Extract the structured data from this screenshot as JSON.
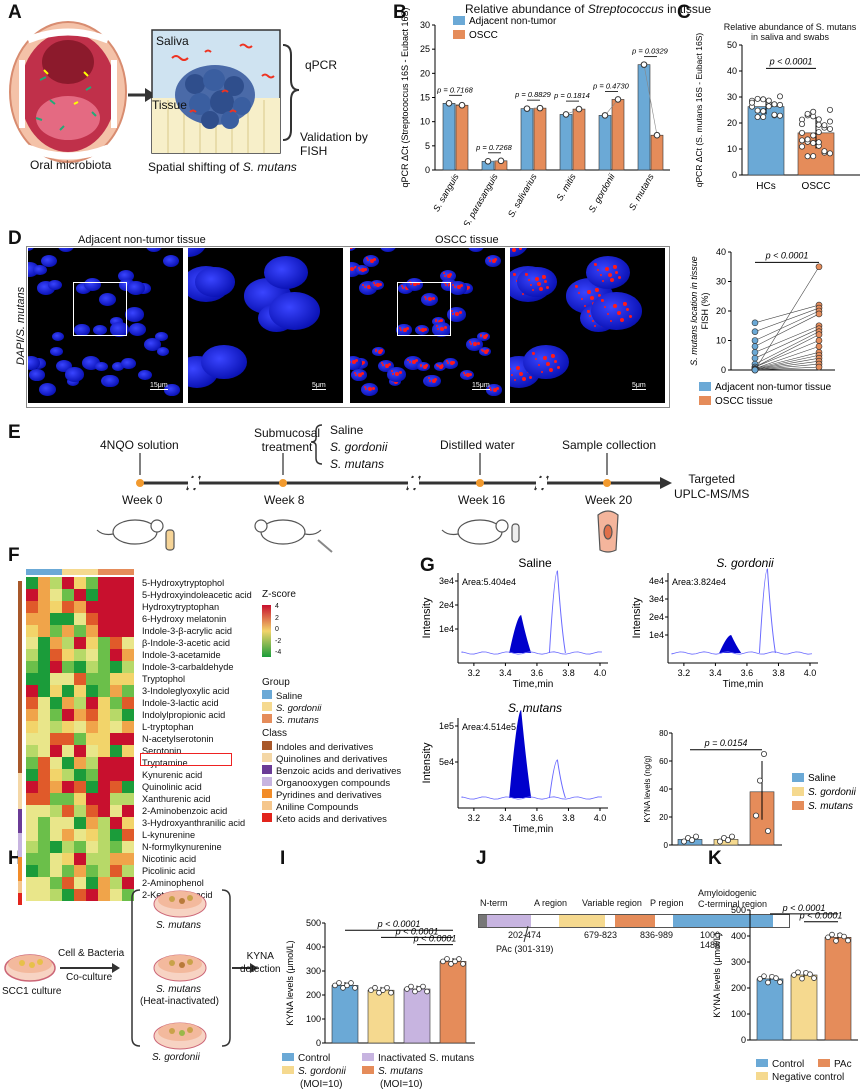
{
  "panels": {
    "a": "A",
    "b": "B",
    "c": "C",
    "d": "D",
    "e": "E",
    "f": "F",
    "g": "G",
    "h": "H",
    "i": "I",
    "j": "J",
    "k": "K"
  },
  "panelA": {
    "saliva": "Saliva",
    "tissue": "Tissue",
    "qpcr": "qPCR",
    "validation": "Validation by FISH",
    "oral": "Oral microbiota",
    "spatial_prefix": "Spatial shifting of ",
    "spatial_species": "S. mutans"
  },
  "panelB": {
    "title_prefix": "Relative abundance of ",
    "title_italic": "Streptococcus",
    "title_suffix": " in tissue",
    "ylabel": "qPCR ΔCt (Streptococcus 16S - Eubact 16S)",
    "legend": [
      "Adjacent non-tumor",
      "OSCC"
    ]
  },
  "panelC": {
    "title1": "Relative abundance of S. mutans",
    "title2": "in saliva and swabs",
    "ylabel": "qPCR ΔCt (S. mutans 16S - Eubact 16S)",
    "pval": "p < 0.0001"
  },
  "panelD": {
    "adj_title": "Adjacent non-tumor tissue",
    "oscc_title": "OSCC tissue",
    "ylabel": "DAPI/S. mutans",
    "scales": [
      "15μm",
      "5μm",
      "15μm",
      "5μm"
    ],
    "plot_ylabel1": "S. mutans location in tissue",
    "plot_ylabel2": "FISH (%)",
    "pval": "p < 0.0001",
    "legend": [
      "Adjacent non-tumor tissue",
      "OSCC tissue"
    ]
  },
  "panelE": {
    "steps": [
      {
        "label": "4NQO solution",
        "week": "Week 0"
      },
      {
        "label": "Submucosal",
        "label2": "treatment",
        "week": "Week 8"
      },
      {
        "label": "Distilled water",
        "week": "Week 16"
      },
      {
        "label": "Sample collection",
        "week": "Week 20"
      }
    ],
    "treatments": [
      "Saline",
      "S. gordonii",
      "S. mutans"
    ],
    "end1": "Targeted",
    "end2": "UPLC-MS/MS"
  },
  "panelF": {
    "metabolites": [
      "5-Hydroxytryptophol",
      "5-Hydroxyindoleacetic acid",
      "Hydroxytryptophan",
      "6-Hydroxy melatonin",
      "Indole-3-β-acrylic acid",
      "β-Indole-3-acetic acid",
      "Indole-3-acetamide",
      "Indole-3-carbaldehyde",
      "Tryptophol",
      "3-Indoleglyoxylic acid",
      "Indole-3-lactic acid",
      "Indolylpropionic acid",
      "L-tryptophan",
      "N-acetylserotonin",
      "Serotonin",
      "Tryptamine",
      "Kynurenic acid",
      "Quinolinic acid",
      "Xanthurenic acid",
      "2-Aminobenzoic acid",
      "3-Hydroxyanthranilic acid",
      "L-kynurenine",
      "N-formylkynurenine",
      "Nicotinic acid",
      "Picolinic acid",
      "2-Aminophenol",
      "2-Ketoadipic acid"
    ],
    "zscore_title": "Z-score",
    "zscore_ticks": [
      "4",
      "2",
      "0",
      "-2",
      "-4"
    ],
    "group_title": "Group",
    "groups": [
      "Saline",
      "S. gordonii",
      "S. mutans"
    ],
    "class_title": "Class",
    "classes": [
      "Indoles and derivatives",
      "Quinolines and derivatives",
      "Benzoic acids and derivatives",
      "Organooxygen compounds",
      "Pyridines and derivatives",
      "Aniline Compounds",
      "Keto acids and derivatives"
    ]
  },
  "panelG": {
    "chroms": [
      {
        "title": "Saline",
        "area": "Area:5.404e4",
        "yticks": [
          "3e4",
          "2e4",
          "1e4"
        ]
      },
      {
        "title": "S. gordonii",
        "area": "Area:3.824e4",
        "yticks": [
          "4e4",
          "3e4",
          "2e4",
          "1e4"
        ]
      },
      {
        "title": "S. mutans",
        "area": "Area:4.514e5",
        "yticks": [
          "1e5",
          "5e4"
        ]
      }
    ],
    "xlabel": "Time,min",
    "ylabel": "Intensity",
    "xticks": [
      "3.2",
      "3.4",
      "3.6",
      "3.8",
      "4.0"
    ],
    "kyna_ylabel": "KYNA levels (ng/g)",
    "pval": "p = 0.0154",
    "legend": [
      "Saline",
      "S. gordonii",
      "S. mutans"
    ]
  },
  "panelH": {
    "scc1": "SCC1 culture",
    "coculture1": "Cell & Bacteria",
    "coculture2": "Co-culture",
    "dishes": [
      "S. mutans",
      "S. mutans",
      "(Heat-inactivated)",
      "S. gordonii"
    ],
    "kyna1": "KYNA",
    "kyna2": "detection"
  },
  "panelI": {
    "ylabel": "KYNA levels (μmol/L)",
    "pvals": [
      "p < 0.0001",
      "p < 0.0001",
      "p < 0.0001"
    ],
    "legend": [
      "Control",
      "Inactivated S. mutans",
      "S. gordonii",
      "(MOI=10)",
      "S. mutans",
      "(MOI=10)"
    ]
  },
  "panelJ": {
    "nterm": "N-term",
    "regions": [
      "A region",
      "Variable region",
      "P region",
      "Amyloidogenic",
      "C-terminal region"
    ],
    "ranges": [
      "202-474",
      "679-823",
      "836-989",
      "1000-1486"
    ],
    "pac": "PAc (301-319)"
  },
  "panelK": {
    "ylabel": "KYNA levels (μmol/L)",
    "pvals": [
      "p < 0.0001",
      "p < 0.0001"
    ],
    "legend": [
      "Control",
      "PAc",
      "Negative control"
    ]
  },
  "chart_data": [
    {
      "type": "bar",
      "title": "Relative abundance of Streptococcus in tissue",
      "categories": [
        "S. sanguis",
        "S. parasanguis",
        "S. salivarius",
        "S. mitis",
        "S. gordonii",
        "S. mutans"
      ],
      "series": [
        {
          "name": "Adjacent non-tumor",
          "values": [
            13.8,
            1.8,
            12.7,
            11.5,
            11.3,
            21.8
          ]
        },
        {
          "name": "OSCC",
          "values": [
            13.4,
            1.9,
            12.8,
            12.6,
            14.6,
            7.2
          ]
        }
      ],
      "pvalues": [
        "p = 0.7168",
        "p = 0.7268",
        "p = 0.8829",
        "p = 0.1814",
        "p = 0.4730",
        "p = 0.0329"
      ],
      "ylim": [
        0,
        30
      ],
      "yticks": [
        0,
        5,
        10,
        15,
        20,
        25,
        30
      ]
    },
    {
      "type": "bar",
      "title": "Relative abundance of S. mutans in saliva and swabs",
      "categories": [
        "HCs",
        "OSCC"
      ],
      "values": [
        26.3,
        16.2
      ],
      "ylim": [
        0,
        50
      ],
      "yticks": [
        0,
        10,
        20,
        30,
        40,
        50
      ]
    },
    {
      "type": "scatter",
      "title": "S. mutans location in tissue FISH (%)",
      "categories": [
        "Adjacent non-tumor tissue",
        "OSCC tissue"
      ],
      "ylim": [
        0,
        40
      ],
      "yticks": [
        0,
        10,
        20,
        30,
        40
      ],
      "pairs": [
        [
          16,
          22
        ],
        [
          13,
          21
        ],
        [
          10,
          20
        ],
        [
          8,
          19
        ],
        [
          6,
          15
        ],
        [
          4,
          14
        ],
        [
          2,
          13
        ],
        [
          1,
          12
        ],
        [
          1,
          10
        ],
        [
          0.5,
          8
        ],
        [
          0.5,
          6
        ],
        [
          0.3,
          5
        ],
        [
          0.2,
          4
        ],
        [
          0.1,
          3
        ],
        [
          0,
          2
        ],
        [
          0,
          1
        ],
        [
          0,
          35
        ]
      ]
    },
    {
      "type": "bar",
      "title": "KYNA levels (ng/g)",
      "categories": [
        "Saline",
        "S. gordonii",
        "S. mutans"
      ],
      "values": [
        4,
        4,
        38
      ],
      "ylim": [
        0,
        80
      ],
      "yticks": [
        0,
        20,
        40,
        60,
        80
      ]
    },
    {
      "type": "bar",
      "title": "KYNA levels (μmol/L) I",
      "categories": [
        "Control",
        "S. gordonii (MOI=10)",
        "Inactivated S. mutans",
        "S. mutans (MOI=10)"
      ],
      "values": [
        240,
        220,
        225,
        340
      ],
      "ylim": [
        0,
        500
      ],
      "yticks": [
        0,
        100,
        200,
        300,
        400,
        500
      ]
    },
    {
      "type": "bar",
      "title": "KYNA levels (μmol/L) K",
      "categories": [
        "Control",
        "Negative control",
        "PAc"
      ],
      "values": [
        235,
        250,
        395
      ],
      "ylim": [
        0,
        500
      ],
      "yticks": [
        0,
        100,
        200,
        300,
        400,
        500
      ]
    }
  ]
}
